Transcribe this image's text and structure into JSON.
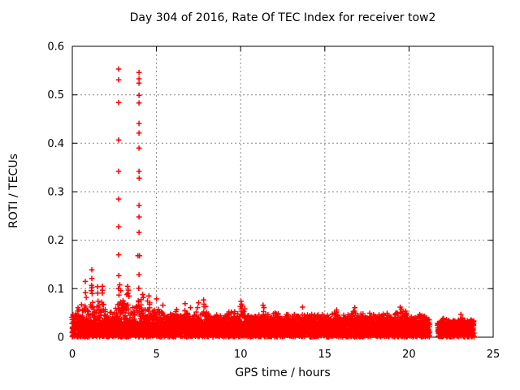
{
  "chart_data": {
    "type": "scatter",
    "title": "Day 304 of 2016, Rate Of TEC Index for receiver tow2",
    "xlabel": "GPS time / hours",
    "ylabel": "ROTI / TECUs",
    "xlim": [
      0,
      25
    ],
    "ylim": [
      0,
      0.6
    ],
    "grid": true,
    "legend": "none",
    "marker": "plus",
    "series_color": "#ff0000",
    "grid_color": "#888888",
    "axis_color": "#000000",
    "xticks": {
      "values": [
        0,
        5,
        10,
        15,
        20,
        25
      ],
      "labels": [
        "0",
        "5",
        "10",
        "15",
        "20",
        "25"
      ]
    },
    "yticks": {
      "values": [
        0,
        0.1,
        0.2,
        0.3,
        0.4,
        0.5,
        0.6
      ],
      "labels": [
        "0",
        "0.1",
        "0.2",
        "0.3",
        "0.4",
        "0.5",
        "0.6"
      ]
    },
    "outliers": [
      [
        0.55,
        0.067
      ],
      [
        0.77,
        0.115
      ],
      [
        0.78,
        0.092
      ],
      [
        1.13,
        0.096
      ],
      [
        1.15,
        0.107
      ],
      [
        1.16,
        0.139
      ],
      [
        1.16,
        0.121
      ],
      [
        1.17,
        0.103
      ],
      [
        1.18,
        0.09
      ],
      [
        1.5,
        0.104
      ],
      [
        1.51,
        0.091
      ],
      [
        1.78,
        0.091
      ],
      [
        1.79,
        0.105
      ],
      [
        1.8,
        0.097
      ],
      [
        2.74,
        0.1
      ],
      [
        2.75,
        0.553
      ],
      [
        2.75,
        0.531
      ],
      [
        2.75,
        0.484
      ],
      [
        2.75,
        0.407
      ],
      [
        2.75,
        0.342
      ],
      [
        2.75,
        0.285
      ],
      [
        2.75,
        0.228
      ],
      [
        2.75,
        0.17
      ],
      [
        2.76,
        0.127
      ],
      [
        2.82,
        0.108
      ],
      [
        2.87,
        0.096
      ],
      [
        3.24,
        0.088
      ],
      [
        3.28,
        0.105
      ],
      [
        3.3,
        0.09
      ],
      [
        3.33,
        0.097
      ],
      [
        3.37,
        0.085
      ],
      [
        3.9,
        0.168
      ],
      [
        3.95,
        0.101
      ],
      [
        3.96,
        0.546
      ],
      [
        3.96,
        0.533
      ],
      [
        3.96,
        0.524
      ],
      [
        3.96,
        0.499
      ],
      [
        3.96,
        0.483
      ],
      [
        3.96,
        0.441
      ],
      [
        3.96,
        0.421
      ],
      [
        3.96,
        0.39
      ],
      [
        3.96,
        0.342
      ],
      [
        3.97,
        0.328
      ],
      [
        3.96,
        0.272
      ],
      [
        3.96,
        0.248
      ],
      [
        3.96,
        0.216
      ],
      [
        3.99,
        0.168
      ],
      [
        3.96,
        0.129
      ],
      [
        4.18,
        0.088
      ],
      [
        4.22,
        0.082
      ],
      [
        4.55,
        0.085
      ],
      [
        5.0,
        0.079
      ],
      [
        5.38,
        0.066
      ],
      [
        6.2,
        0.057
      ],
      [
        6.7,
        0.069
      ],
      [
        7.02,
        0.061
      ],
      [
        7.5,
        0.071
      ],
      [
        7.8,
        0.077
      ],
      [
        9.3,
        0.052
      ],
      [
        10.02,
        0.074
      ],
      [
        10.06,
        0.068
      ],
      [
        10.1,
        0.064
      ],
      [
        11.33,
        0.066
      ],
      [
        11.38,
        0.061
      ],
      [
        13.68,
        0.062
      ],
      [
        15.7,
        0.056
      ],
      [
        16.78,
        0.061
      ],
      [
        19.48,
        0.062
      ],
      [
        19.55,
        0.058
      ],
      [
        23.08,
        0.047
      ]
    ],
    "noise": {
      "seed": 2016304,
      "column_step_hours": 0.045,
      "dense_per_column": 7,
      "tail_per_column": 3,
      "x_jitter": 0.06,
      "base_max": 0.027,
      "segments": [
        {
          "x_start": 0,
          "x_end": 21.2,
          "envelope": [
            [
              0.0,
              0.05
            ],
            [
              0.3,
              0.058
            ],
            [
              0.55,
              0.065
            ],
            [
              0.8,
              0.088
            ],
            [
              1.0,
              0.052
            ],
            [
              1.16,
              0.088
            ],
            [
              1.35,
              0.056
            ],
            [
              1.5,
              0.085
            ],
            [
              1.65,
              0.052
            ],
            [
              1.8,
              0.088
            ],
            [
              2.0,
              0.05
            ],
            [
              2.2,
              0.055
            ],
            [
              2.4,
              0.062
            ],
            [
              2.6,
              0.075
            ],
            [
              2.75,
              0.11
            ],
            [
              2.9,
              0.1
            ],
            [
              3.1,
              0.072
            ],
            [
              3.3,
              0.098
            ],
            [
              3.45,
              0.08
            ],
            [
              3.6,
              0.062
            ],
            [
              3.8,
              0.08
            ],
            [
              3.96,
              0.085
            ],
            [
              4.15,
              0.078
            ],
            [
              4.3,
              0.068
            ],
            [
              4.55,
              0.082
            ],
            [
              4.7,
              0.058
            ],
            [
              4.85,
              0.056
            ],
            [
              5.0,
              0.075
            ],
            [
              5.15,
              0.054
            ],
            [
              5.35,
              0.064
            ],
            [
              5.5,
              0.05
            ],
            [
              5.7,
              0.048
            ],
            [
              5.9,
              0.052
            ],
            [
              6.1,
              0.056
            ],
            [
              6.3,
              0.048
            ],
            [
              6.5,
              0.05
            ],
            [
              6.7,
              0.068
            ],
            [
              6.9,
              0.054
            ],
            [
              7.0,
              0.059
            ],
            [
              7.2,
              0.05
            ],
            [
              7.5,
              0.07
            ],
            [
              7.8,
              0.075
            ],
            [
              8.0,
              0.054
            ],
            [
              8.2,
              0.048
            ],
            [
              8.5,
              0.052
            ],
            [
              8.7,
              0.05
            ],
            [
              9.0,
              0.046
            ],
            [
              9.3,
              0.054
            ],
            [
              9.5,
              0.058
            ],
            [
              9.7,
              0.05
            ],
            [
              9.85,
              0.055
            ],
            [
              10.0,
              0.07
            ],
            [
              10.15,
              0.064
            ],
            [
              10.4,
              0.05
            ],
            [
              10.7,
              0.046
            ],
            [
              11.0,
              0.05
            ],
            [
              11.35,
              0.063
            ],
            [
              11.6,
              0.05
            ],
            [
              11.9,
              0.048
            ],
            [
              12.1,
              0.052
            ],
            [
              12.4,
              0.046
            ],
            [
              12.7,
              0.05
            ],
            [
              13.0,
              0.048
            ],
            [
              13.3,
              0.05
            ],
            [
              13.65,
              0.06
            ],
            [
              13.9,
              0.05
            ],
            [
              14.2,
              0.046
            ],
            [
              14.5,
              0.05
            ],
            [
              14.8,
              0.046
            ],
            [
              15.0,
              0.05
            ],
            [
              15.3,
              0.046
            ],
            [
              15.7,
              0.054
            ],
            [
              16.0,
              0.046
            ],
            [
              16.3,
              0.05
            ],
            [
              16.7,
              0.058
            ],
            [
              16.9,
              0.054
            ],
            [
              17.2,
              0.054
            ],
            [
              17.5,
              0.046
            ],
            [
              17.75,
              0.051
            ],
            [
              18.0,
              0.056
            ],
            [
              18.3,
              0.046
            ],
            [
              18.55,
              0.05
            ],
            [
              18.8,
              0.051
            ],
            [
              19.1,
              0.046
            ],
            [
              19.4,
              0.058
            ],
            [
              19.6,
              0.06
            ],
            [
              19.85,
              0.056
            ],
            [
              20.1,
              0.046
            ],
            [
              20.35,
              0.043
            ],
            [
              20.6,
              0.047
            ],
            [
              20.85,
              0.049
            ],
            [
              21.1,
              0.044
            ],
            [
              21.2,
              0.04
            ]
          ]
        },
        {
          "x_start": 21.72,
          "x_end": 23.85,
          "envelope": [
            [
              21.72,
              0.034
            ],
            [
              21.9,
              0.04
            ],
            [
              22.2,
              0.037
            ],
            [
              22.5,
              0.041
            ],
            [
              22.8,
              0.036
            ],
            [
              23.1,
              0.044
            ],
            [
              23.4,
              0.039
            ],
            [
              23.65,
              0.041
            ],
            [
              23.85,
              0.037
            ]
          ]
        }
      ]
    }
  }
}
